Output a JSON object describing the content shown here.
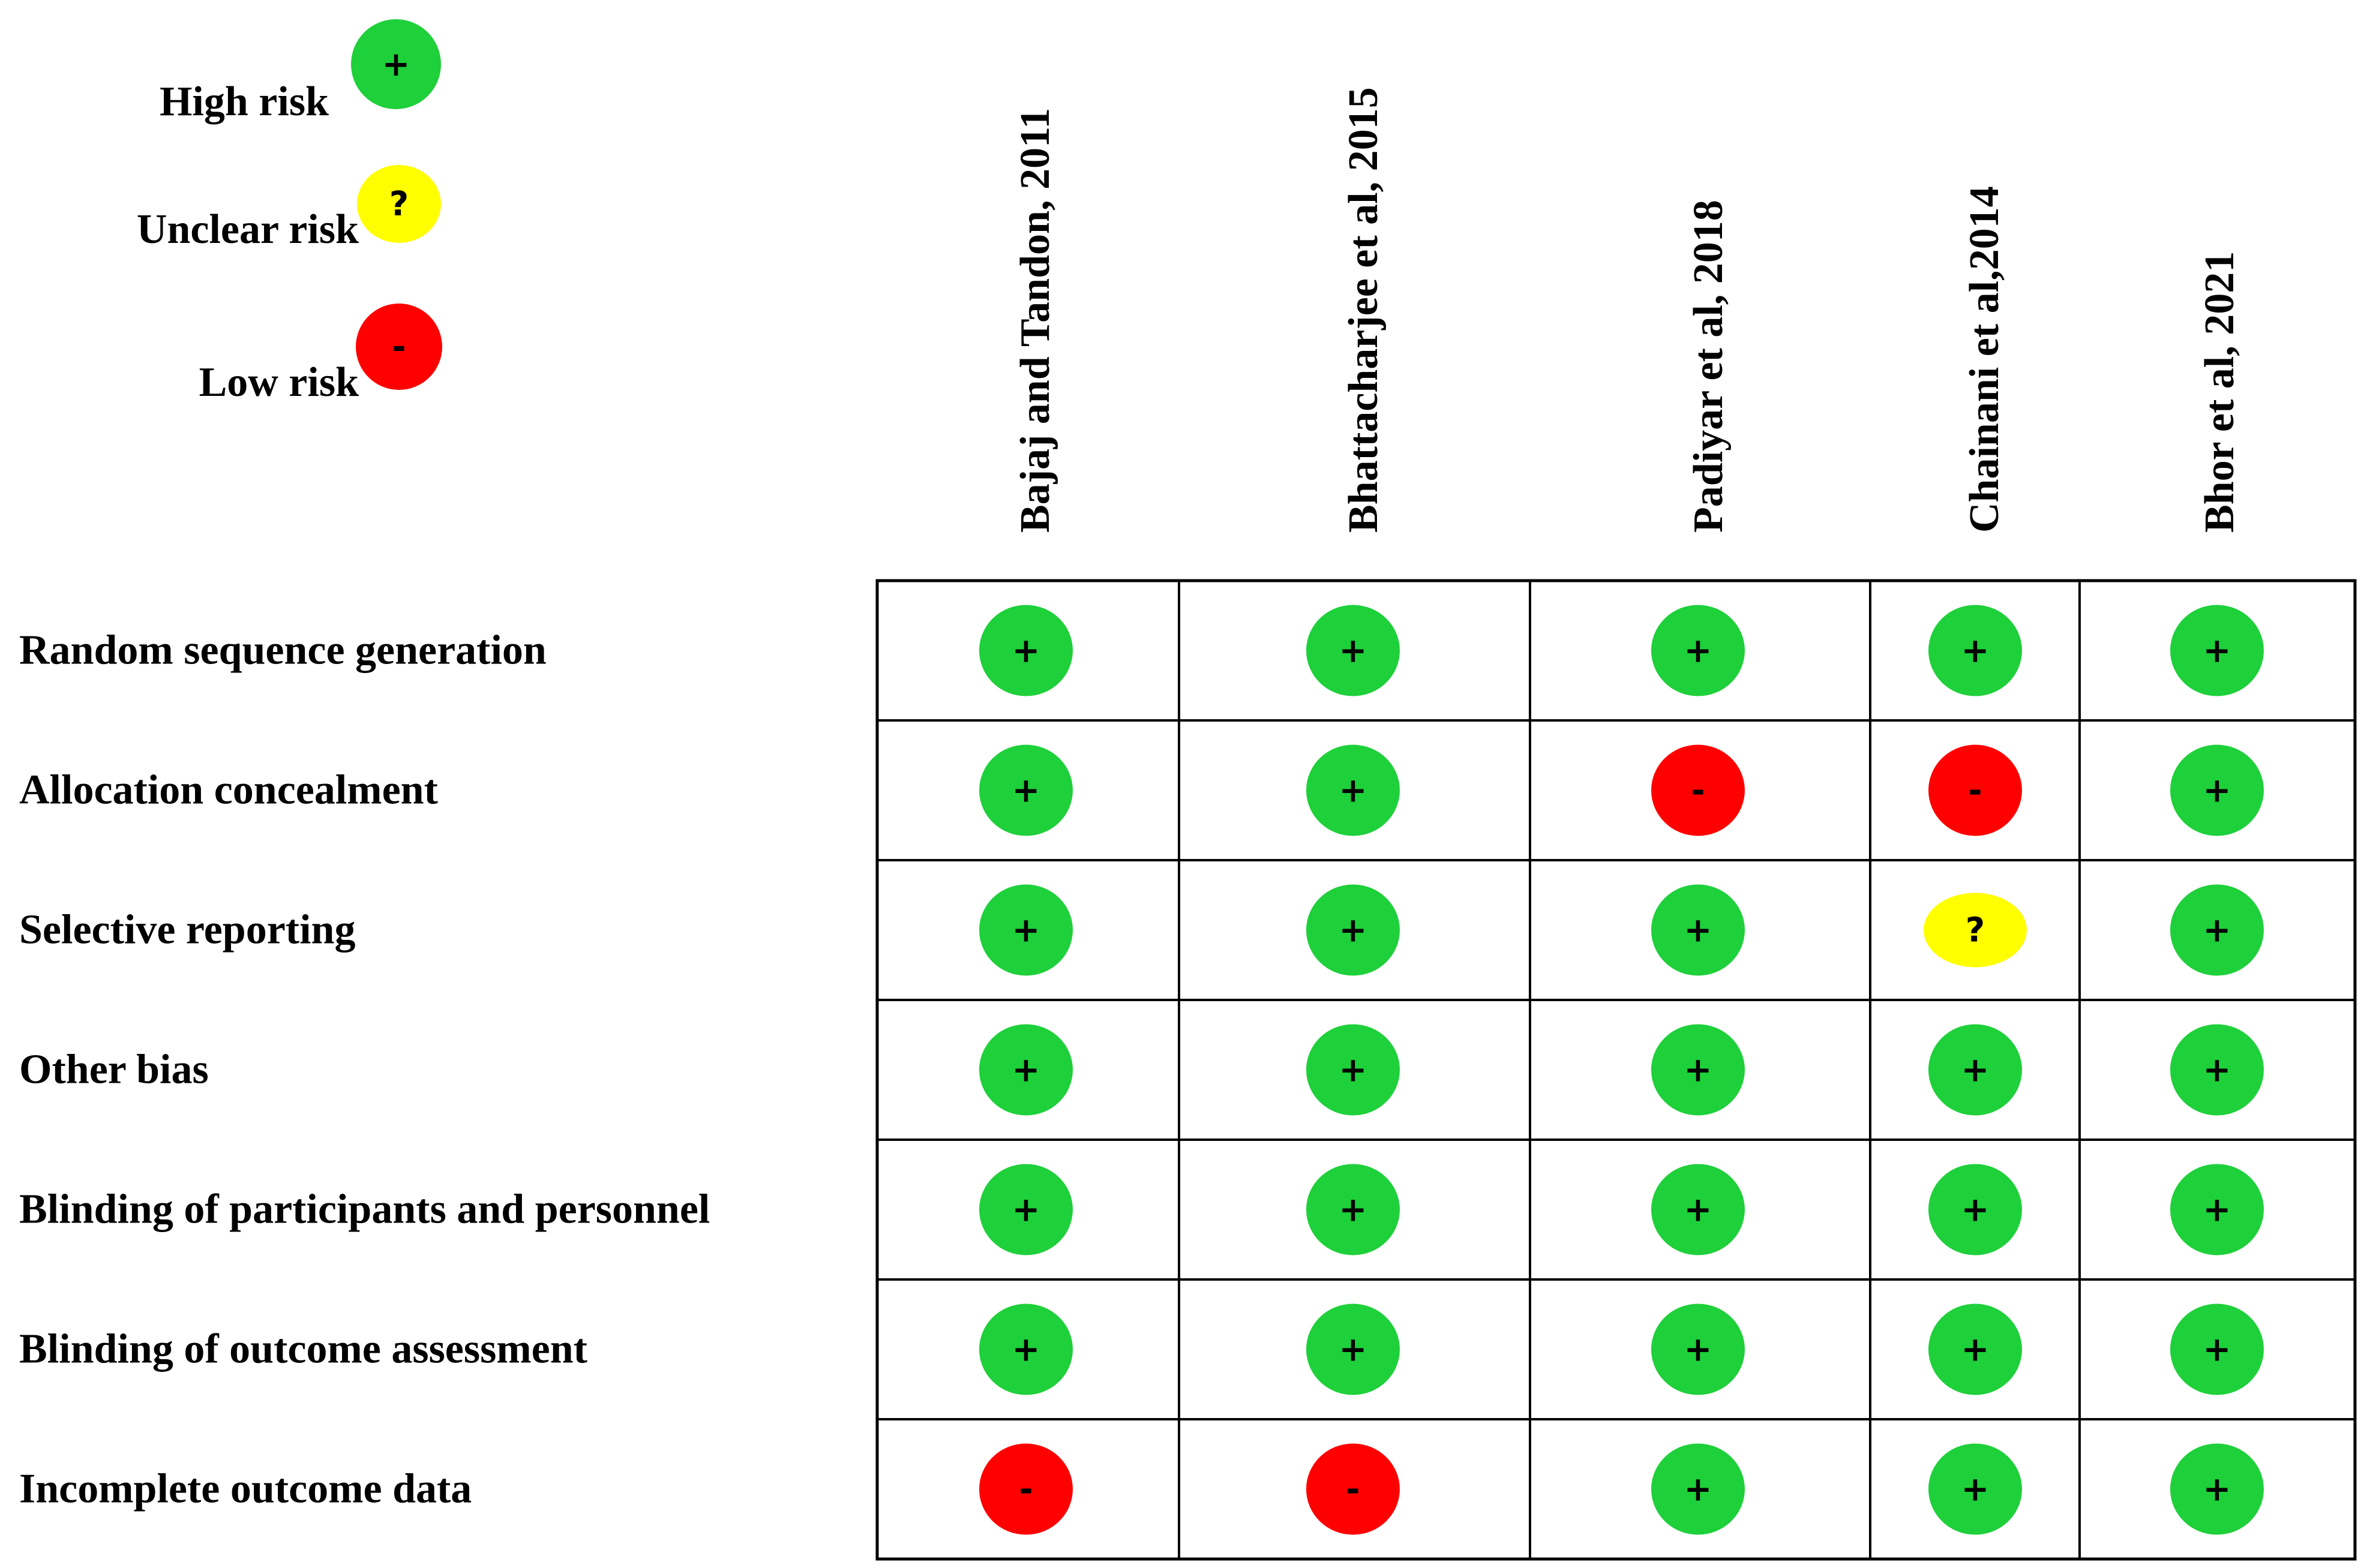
{
  "chart_data": {
    "type": "table",
    "legend": [
      {
        "key": "high",
        "label": "High risk",
        "symbol": "+",
        "color": "#1ed03a"
      },
      {
        "key": "unclear",
        "label": "Unclear risk",
        "symbol": "?",
        "color": "#ffff00"
      },
      {
        "key": "low",
        "label": "Low risk",
        "symbol": "-",
        "color": "#ff0000"
      }
    ],
    "columns": [
      "Bajaj and Tandon, 2011",
      "Bhattacharjee et al, 2015",
      "Padiyar et al, 2018",
      "Chainani et al,2014",
      "Bhor et al, 2021"
    ],
    "rows": [
      {
        "label": "Random sequence generation",
        "values": [
          "high",
          "high",
          "high",
          "high",
          "high"
        ]
      },
      {
        "label": "Allocation concealment",
        "values": [
          "high",
          "high",
          "low",
          "low",
          "high"
        ]
      },
      {
        "label": "Selective reporting",
        "values": [
          "high",
          "high",
          "high",
          "unclear",
          "high"
        ]
      },
      {
        "label": "Other bias",
        "values": [
          "high",
          "high",
          "high",
          "high",
          "high"
        ]
      },
      {
        "label": "Blinding of participants and personnel",
        "values": [
          "high",
          "high",
          "high",
          "high",
          "high"
        ]
      },
      {
        "label": "Blinding of outcome assessment",
        "values": [
          "high",
          "high",
          "high",
          "high",
          "high"
        ]
      },
      {
        "label": "Incomplete outcome data",
        "values": [
          "low",
          "low",
          "high",
          "high",
          "high"
        ]
      }
    ]
  }
}
